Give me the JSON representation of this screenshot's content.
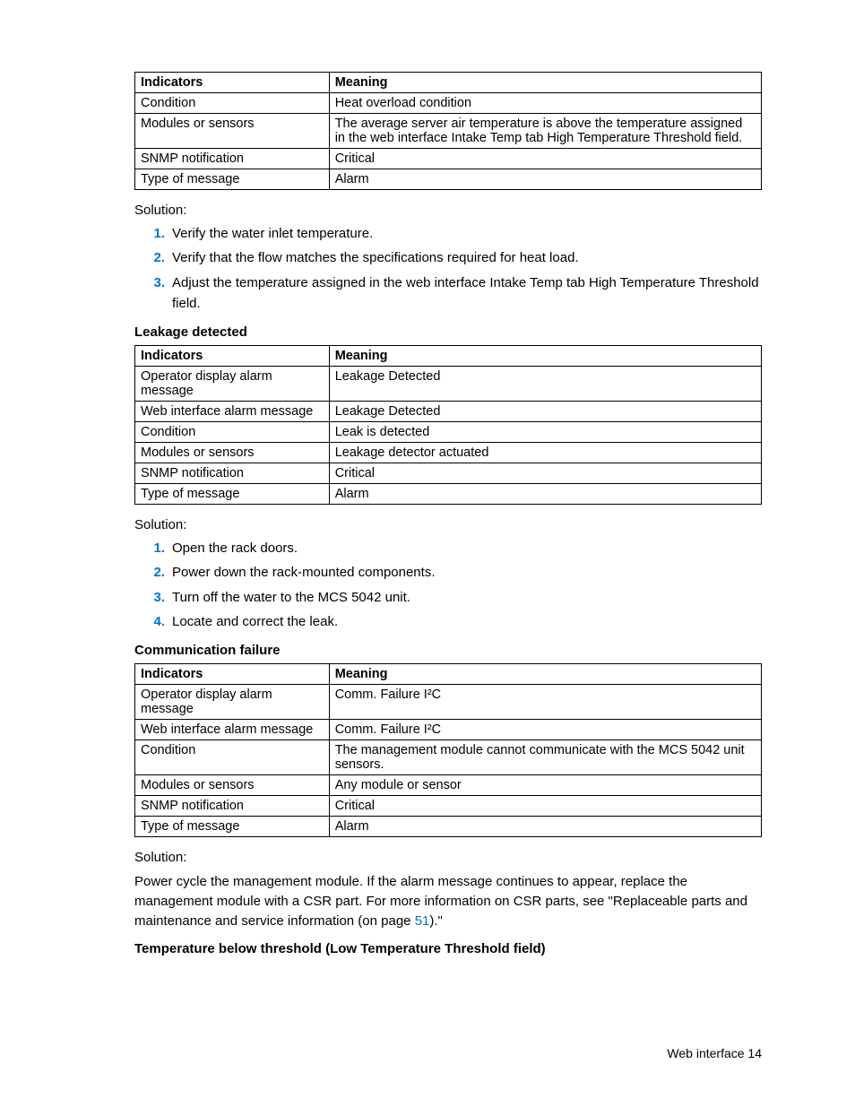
{
  "table1": {
    "headers": [
      "Indicators",
      "Meaning"
    ],
    "rows": [
      [
        "Condition",
        "Heat overload condition"
      ],
      [
        "Modules or sensors",
        "The average server air temperature is above the temperature assigned in the web interface Intake Temp tab High Temperature Threshold field."
      ],
      [
        "SNMP notification",
        "Critical"
      ],
      [
        "Type of message",
        "Alarm"
      ]
    ]
  },
  "sol1_label": "Solution:",
  "sol1_steps": [
    "Verify the water inlet temperature.",
    "Verify that the flow matches the specifications required for heat load.",
    "Adjust the temperature assigned in the web interface Intake Temp tab High Temperature Threshold field."
  ],
  "section1_title": "Leakage detected",
  "table2": {
    "headers": [
      "Indicators",
      "Meaning"
    ],
    "rows": [
      [
        "Operator display alarm message",
        "Leakage Detected"
      ],
      [
        "Web interface alarm message",
        "Leakage Detected"
      ],
      [
        "Condition",
        "Leak is detected"
      ],
      [
        "Modules or sensors",
        "Leakage detector actuated"
      ],
      [
        "SNMP notification",
        "Critical"
      ],
      [
        "Type of message",
        "Alarm"
      ]
    ]
  },
  "sol2_label": "Solution:",
  "sol2_steps": [
    "Open the rack doors.",
    "Power down the rack-mounted components.",
    "Turn off the water to the MCS 5042 unit.",
    "Locate and correct the leak."
  ],
  "section2_title": "Communication failure",
  "table3": {
    "headers": [
      "Indicators",
      "Meaning"
    ],
    "rows": [
      [
        "Operator display alarm message",
        "Comm. Failure I²C"
      ],
      [
        "Web interface alarm message",
        "Comm. Failure I²C"
      ],
      [
        "Condition",
        "The management module cannot communicate with the MCS 5042 unit sensors."
      ],
      [
        "Modules or sensors",
        "Any module or sensor"
      ],
      [
        "SNMP notification",
        "Critical"
      ],
      [
        "Type of message",
        "Alarm"
      ]
    ]
  },
  "sol3_label": "Solution:",
  "sol3_para_pre": "Power cycle the management module. If the alarm message continues to appear, replace the management module with a CSR part. For more information on CSR parts, see \"Replaceable parts and maintenance and service information (on page ",
  "sol3_link": "51",
  "sol3_para_post": ").\"",
  "section3_title": "Temperature below threshold (Low Temperature Threshold field)",
  "footer_text": "Web interface   14"
}
